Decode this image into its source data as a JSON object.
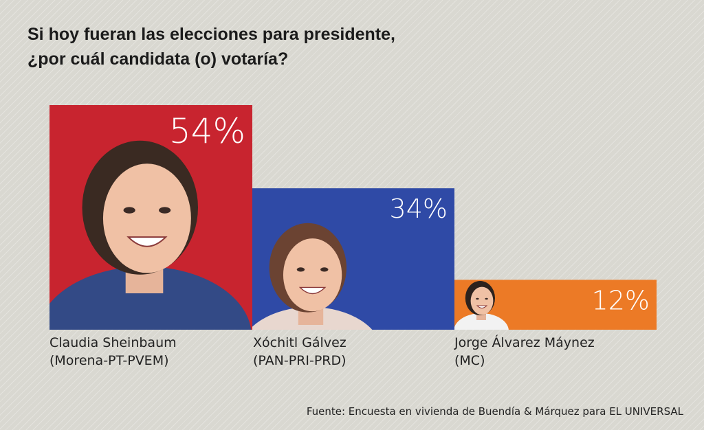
{
  "title_lines": [
    "Si hoy fueran las elecciones para presidente,",
    "¿por cuál candidata (o) votaría?"
  ],
  "chart_data": {
    "type": "bar",
    "categories": [
      "Claudia Sheinbaum (Morena-PT-PVEM)",
      "Xóchitl Gálvez (PAN-PRI-PRD)",
      "Jorge Álvarez Máynez (MC)"
    ],
    "values": [
      54,
      34,
      12
    ],
    "value_labels": [
      "54%",
      "34%",
      "12%"
    ],
    "colors": [
      "#c8242f",
      "#2f4aa6",
      "#ec7a26"
    ],
    "ylim": [
      0,
      54
    ]
  },
  "candidates": [
    {
      "name": "Claudia Sheinbaum",
      "party": "(Morena-PT-PVEM)",
      "color": "#c8242f"
    },
    {
      "name": "Xóchitl Gálvez",
      "party": "(PAN-PRI-PRD)",
      "color": "#2f4aa6"
    },
    {
      "name": "Jorge Álvarez Máynez",
      "party": "(MC)",
      "color": "#ec7a26"
    }
  ],
  "source": "Fuente: Encuesta en vivienda de Buendía & Márquez para EL UNIVERSAL"
}
